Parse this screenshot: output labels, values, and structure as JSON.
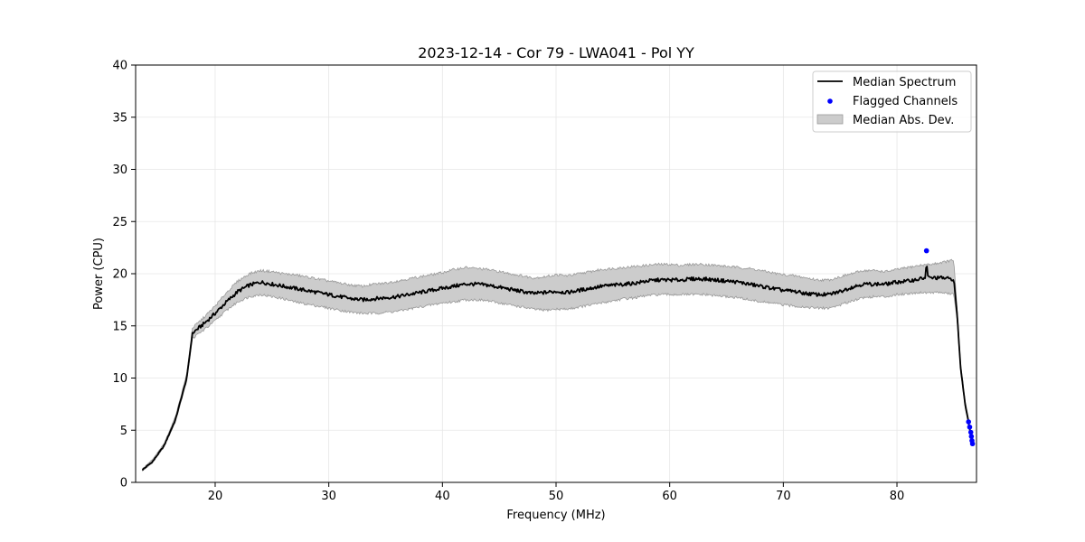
{
  "chart_data": {
    "type": "line",
    "title": "2023-12-14 - Cor 79 - LWA041 - Pol YY",
    "xlabel": "Frequency (MHz)",
    "ylabel": "Power (CPU)",
    "xlim": [
      13,
      87
    ],
    "ylim": [
      0,
      40
    ],
    "xticks": [
      20,
      30,
      40,
      50,
      60,
      70,
      80
    ],
    "yticks": [
      0,
      5,
      10,
      15,
      20,
      25,
      30,
      35,
      40
    ],
    "grid": true,
    "legend_position": "top-right",
    "legend": [
      "Median Spectrum",
      "Flagged Channels",
      "Median Abs. Dev."
    ],
    "colors": {
      "median": "#000000",
      "flagged": "#0000ff",
      "mad_fill": "#cccccc",
      "mad_edge": "#999999"
    },
    "series": [
      {
        "name": "Median Spectrum",
        "x": [
          13.6,
          14.5,
          15.5,
          16.5,
          17.5,
          18.0,
          19.0,
          20.0,
          21.0,
          22.0,
          23.0,
          24.0,
          25.0,
          26.0,
          27.0,
          28.0,
          29.0,
          30.0,
          31.0,
          32.0,
          33.0,
          34.0,
          35.0,
          36.0,
          37.0,
          38.0,
          39.0,
          40.0,
          41.0,
          42.0,
          43.0,
          44.0,
          45.0,
          46.0,
          47.0,
          48.0,
          49.0,
          50.0,
          51.0,
          52.0,
          53.0,
          54.0,
          55.0,
          56.0,
          57.0,
          58.0,
          59.0,
          60.0,
          61.0,
          62.0,
          63.0,
          64.0,
          65.0,
          66.0,
          67.0,
          68.0,
          69.0,
          70.0,
          71.0,
          72.0,
          73.0,
          74.0,
          75.0,
          76.0,
          77.0,
          78.0,
          79.0,
          80.0,
          81.0,
          82.0,
          82.5,
          82.6,
          82.7,
          83.0,
          84.0,
          84.7,
          85.0,
          85.3,
          85.6,
          86.0,
          86.3,
          86.5
        ],
        "y": [
          1.2,
          2.0,
          3.5,
          6.0,
          10.0,
          14.3,
          15.2,
          16.2,
          17.3,
          18.3,
          18.9,
          19.2,
          19.0,
          18.8,
          18.6,
          18.4,
          18.2,
          18.0,
          17.8,
          17.6,
          17.5,
          17.6,
          17.7,
          17.8,
          18.0,
          18.2,
          18.4,
          18.6,
          18.8,
          19.0,
          19.0,
          18.9,
          18.7,
          18.5,
          18.3,
          18.1,
          18.2,
          18.3,
          18.2,
          18.4,
          18.6,
          18.8,
          18.9,
          19.0,
          19.1,
          19.3,
          19.4,
          19.4,
          19.4,
          19.5,
          19.5,
          19.4,
          19.3,
          19.2,
          19.0,
          18.8,
          18.6,
          18.4,
          18.3,
          18.1,
          18.0,
          18.0,
          18.3,
          18.7,
          19.0,
          19.0,
          19.0,
          19.2,
          19.3,
          19.5,
          19.6,
          21.2,
          19.7,
          19.6,
          19.6,
          19.5,
          19.5,
          16.0,
          11.0,
          7.5,
          5.8,
          4.5
        ]
      },
      {
        "name": "Median Abs. Dev.",
        "x": [
          13.6,
          14.5,
          15.5,
          16.5,
          17.5,
          18.0,
          19.0,
          20.0,
          21.0,
          22.0,
          23.0,
          24.0,
          25.0,
          26.0,
          27.0,
          28.0,
          29.0,
          30.0,
          31.0,
          32.0,
          33.0,
          34.0,
          35.0,
          36.0,
          37.0,
          38.0,
          39.0,
          40.0,
          41.0,
          42.0,
          43.0,
          44.0,
          45.0,
          46.0,
          47.0,
          48.0,
          49.0,
          50.0,
          51.0,
          52.0,
          53.0,
          54.0,
          55.0,
          56.0,
          57.0,
          58.0,
          59.0,
          60.0,
          61.0,
          62.0,
          63.0,
          64.0,
          65.0,
          66.0,
          67.0,
          68.0,
          69.0,
          70.0,
          71.0,
          72.0,
          73.0,
          74.0,
          75.0,
          76.0,
          77.0,
          78.0,
          79.0,
          80.0,
          81.0,
          82.0,
          83.0,
          84.0,
          85.0,
          85.3,
          85.6,
          86.0,
          86.3,
          86.5
        ],
        "lower": [
          1.1,
          1.9,
          3.4,
          5.8,
          9.7,
          13.8,
          14.6,
          15.5,
          16.5,
          17.3,
          17.8,
          18.0,
          17.8,
          17.6,
          17.3,
          17.1,
          16.9,
          16.7,
          16.5,
          16.3,
          16.2,
          16.2,
          16.3,
          16.4,
          16.6,
          16.8,
          17.0,
          17.2,
          17.3,
          17.5,
          17.5,
          17.4,
          17.2,
          17.0,
          16.8,
          16.6,
          16.5,
          16.6,
          16.6,
          16.8,
          17.0,
          17.2,
          17.4,
          17.6,
          17.7,
          17.9,
          18.0,
          18.0,
          18.0,
          18.0,
          18.0,
          17.9,
          17.8,
          17.7,
          17.5,
          17.3,
          17.2,
          17.0,
          16.9,
          16.8,
          16.7,
          16.7,
          17.0,
          17.4,
          17.7,
          17.8,
          17.8,
          18.0,
          18.1,
          18.2,
          18.2,
          18.2,
          18.0,
          15.5,
          10.6,
          7.2,
          5.5,
          4.3
        ],
        "upper": [
          1.3,
          2.2,
          3.7,
          6.3,
          10.4,
          14.8,
          15.8,
          16.9,
          18.2,
          19.3,
          20.0,
          20.3,
          20.2,
          20.0,
          19.9,
          19.7,
          19.5,
          19.3,
          19.1,
          18.9,
          18.8,
          19.0,
          19.1,
          19.3,
          19.5,
          19.7,
          19.9,
          20.1,
          20.4,
          20.6,
          20.5,
          20.4,
          20.2,
          20.0,
          19.8,
          19.6,
          19.7,
          19.9,
          19.8,
          20.0,
          20.2,
          20.4,
          20.5,
          20.6,
          20.7,
          20.8,
          20.9,
          20.9,
          20.8,
          20.9,
          20.9,
          20.8,
          20.7,
          20.6,
          20.5,
          20.3,
          20.1,
          19.9,
          19.8,
          19.6,
          19.4,
          19.4,
          19.7,
          20.0,
          20.3,
          20.3,
          20.2,
          20.4,
          20.6,
          20.8,
          20.9,
          21.1,
          21.3,
          16.5,
          11.4,
          7.8,
          6.1,
          4.7
        ]
      },
      {
        "name": "Flagged Channels",
        "x": [
          82.6,
          86.3,
          86.4,
          86.5,
          86.55,
          86.6,
          86.65
        ],
        "y": [
          22.2,
          5.8,
          5.3,
          4.8,
          4.4,
          4.0,
          3.7
        ]
      }
    ]
  }
}
